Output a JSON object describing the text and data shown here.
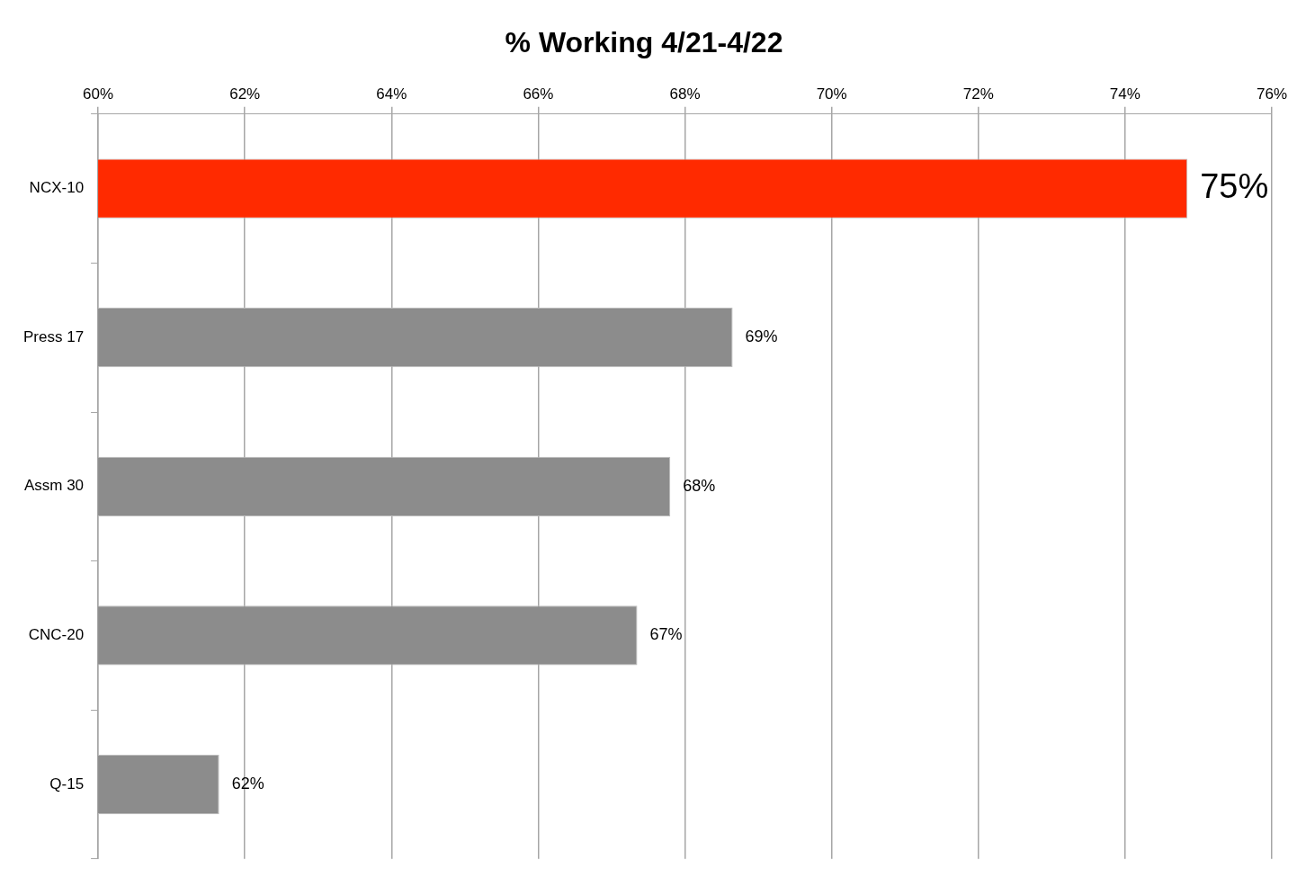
{
  "chart_data": {
    "type": "bar",
    "orientation": "horizontal",
    "title": "% Working 4/21-4/22",
    "categories": [
      "NCX-10",
      "Press 17",
      "Assm 30",
      "CNC-20",
      "Q-15"
    ],
    "values": [
      74.85,
      68.65,
      67.8,
      67.35,
      61.65
    ],
    "colors": [
      "#ff2a00",
      "#8c8c8c",
      "#8c8c8c",
      "#8c8c8c",
      "#8c8c8c"
    ],
    "value_labels": [
      "75%",
      "69%",
      "68%",
      "67%",
      "62%"
    ],
    "xlim": [
      60,
      76
    ],
    "xticks": [
      {
        "value": 60,
        "label": "60%"
      },
      {
        "value": 62,
        "label": "62%"
      },
      {
        "value": 64,
        "label": "64%"
      },
      {
        "value": 66,
        "label": "66%"
      },
      {
        "value": 68,
        "label": "68%"
      },
      {
        "value": 70,
        "label": "70%"
      },
      {
        "value": 72,
        "label": "72%"
      },
      {
        "value": 74,
        "label": "74%"
      },
      {
        "value": 76,
        "label": "76%"
      }
    ],
    "grid": "x",
    "legend": false
  }
}
